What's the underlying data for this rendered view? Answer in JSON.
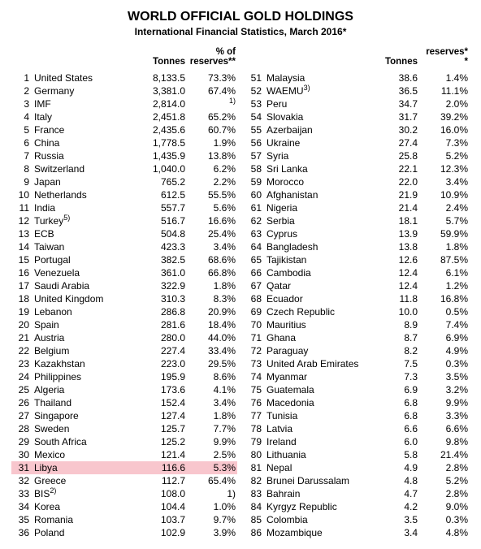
{
  "title": "WORLD OFFICIAL GOLD HOLDINGS",
  "subtitle": "International Financial Statistics, March 2016*",
  "headers": {
    "tonnes": "Tonnes",
    "reserves_left": "% of\nreserves**",
    "reserves_right": "reserves*\n*"
  },
  "highlight_rank": 31,
  "highlight_color": "#f8c6cd",
  "text_color": "#000000",
  "background_color": "#ffffff",
  "left": [
    {
      "rank": 1,
      "country": "United States",
      "tonnes": "8,133.5",
      "pct": "73.3%"
    },
    {
      "rank": 2,
      "country": "Germany",
      "tonnes": "3,381.0",
      "pct": "67.4%"
    },
    {
      "rank": 3,
      "country": "IMF",
      "tonnes": "2,814.0",
      "pct": "",
      "note_pct": "1)"
    },
    {
      "rank": 4,
      "country": "Italy",
      "tonnes": "2,451.8",
      "pct": "65.2%"
    },
    {
      "rank": 5,
      "country": "France",
      "tonnes": "2,435.6",
      "pct": "60.7%"
    },
    {
      "rank": 6,
      "country": "China",
      "tonnes": "1,778.5",
      "pct": "1.9%"
    },
    {
      "rank": 7,
      "country": "Russia",
      "tonnes": "1,435.9",
      "pct": "13.8%"
    },
    {
      "rank": 8,
      "country": "Switzerland",
      "tonnes": "1,040.0",
      "pct": "6.2%"
    },
    {
      "rank": 9,
      "country": "Japan",
      "tonnes": "765.2",
      "pct": "2.2%"
    },
    {
      "rank": 10,
      "country": "Netherlands",
      "tonnes": "612.5",
      "pct": "55.5%"
    },
    {
      "rank": 11,
      "country": "India",
      "tonnes": "557.7",
      "pct": "5.6%"
    },
    {
      "rank": 12,
      "country": "Turkey",
      "sup": "5)",
      "tonnes": "516.7",
      "pct": "16.6%"
    },
    {
      "rank": 13,
      "country": "ECB",
      "tonnes": "504.8",
      "pct": "25.4%"
    },
    {
      "rank": 14,
      "country": "Taiwan",
      "tonnes": "423.3",
      "pct": "3.4%"
    },
    {
      "rank": 15,
      "country": "Portugal",
      "tonnes": "382.5",
      "pct": "68.6%"
    },
    {
      "rank": 16,
      "country": "Venezuela",
      "tonnes": "361.0",
      "pct": "66.8%"
    },
    {
      "rank": 17,
      "country": "Saudi Arabia",
      "tonnes": "322.9",
      "pct": "1.8%"
    },
    {
      "rank": 18,
      "country": "United Kingdom",
      "tonnes": "310.3",
      "pct": "8.3%"
    },
    {
      "rank": 19,
      "country": "Lebanon",
      "tonnes": "286.8",
      "pct": "20.9%"
    },
    {
      "rank": 20,
      "country": "Spain",
      "tonnes": "281.6",
      "pct": "18.4%"
    },
    {
      "rank": 21,
      "country": "Austria",
      "tonnes": "280.0",
      "pct": "44.0%"
    },
    {
      "rank": 22,
      "country": "Belgium",
      "tonnes": "227.4",
      "pct": "33.4%"
    },
    {
      "rank": 23,
      "country": "Kazakhstan",
      "tonnes": "223.0",
      "pct": "29.5%"
    },
    {
      "rank": 24,
      "country": "Philippines",
      "tonnes": "195.9",
      "pct": "8.6%"
    },
    {
      "rank": 25,
      "country": "Algeria",
      "tonnes": "173.6",
      "pct": "4.1%"
    },
    {
      "rank": 26,
      "country": "Thailand",
      "tonnes": "152.4",
      "pct": "3.4%"
    },
    {
      "rank": 27,
      "country": "Singapore",
      "tonnes": "127.4",
      "pct": "1.8%"
    },
    {
      "rank": 28,
      "country": "Sweden",
      "tonnes": "125.7",
      "pct": "7.7%"
    },
    {
      "rank": 29,
      "country": "South Africa",
      "tonnes": "125.2",
      "pct": "9.9%"
    },
    {
      "rank": 30,
      "country": "Mexico",
      "tonnes": "121.4",
      "pct": "2.5%"
    },
    {
      "rank": 31,
      "country": "Libya",
      "tonnes": "116.6",
      "pct": "5.3%"
    },
    {
      "rank": 32,
      "country": "Greece",
      "tonnes": "112.7",
      "pct": "65.4%"
    },
    {
      "rank": 33,
      "country": "BIS",
      "sup": "2)",
      "tonnes": "108.0",
      "pct": "1)"
    },
    {
      "rank": 34,
      "country": "Korea",
      "tonnes": "104.4",
      "pct": "1.0%"
    },
    {
      "rank": 35,
      "country": "Romania",
      "tonnes": "103.7",
      "pct": "9.7%"
    },
    {
      "rank": 36,
      "country": "Poland",
      "tonnes": "102.9",
      "pct": "3.9%"
    }
  ],
  "right": [
    {
      "rank": 51,
      "country": "Malaysia",
      "tonnes": "38.6",
      "pct": "1.4%"
    },
    {
      "rank": 52,
      "country": "WAEMU",
      "sup": "3)",
      "tonnes": "36.5",
      "pct": "11.1%"
    },
    {
      "rank": 53,
      "country": "Peru",
      "tonnes": "34.7",
      "pct": "2.0%"
    },
    {
      "rank": 54,
      "country": "Slovakia",
      "tonnes": "31.7",
      "pct": "39.2%"
    },
    {
      "rank": 55,
      "country": "Azerbaijan",
      "tonnes": "30.2",
      "pct": "16.0%"
    },
    {
      "rank": 56,
      "country": "Ukraine",
      "tonnes": "27.4",
      "pct": "7.3%"
    },
    {
      "rank": 57,
      "country": "Syria",
      "tonnes": "25.8",
      "pct": "5.2%"
    },
    {
      "rank": 58,
      "country": "Sri Lanka",
      "tonnes": "22.1",
      "pct": "12.3%"
    },
    {
      "rank": 59,
      "country": "Morocco",
      "tonnes": "22.0",
      "pct": "3.4%"
    },
    {
      "rank": 60,
      "country": "Afghanistan",
      "tonnes": "21.9",
      "pct": "10.9%"
    },
    {
      "rank": 61,
      "country": "Nigeria",
      "tonnes": "21.4",
      "pct": "2.4%"
    },
    {
      "rank": 62,
      "country": "Serbia",
      "tonnes": "18.1",
      "pct": "5.7%"
    },
    {
      "rank": 63,
      "country": "Cyprus",
      "tonnes": "13.9",
      "pct": "59.9%"
    },
    {
      "rank": 64,
      "country": "Bangladesh",
      "tonnes": "13.8",
      "pct": "1.8%"
    },
    {
      "rank": 65,
      "country": "Tajikistan",
      "tonnes": "12.6",
      "pct": "87.5%"
    },
    {
      "rank": 66,
      "country": "Cambodia",
      "tonnes": "12.4",
      "pct": "6.1%"
    },
    {
      "rank": 67,
      "country": "Qatar",
      "tonnes": "12.4",
      "pct": "1.2%"
    },
    {
      "rank": 68,
      "country": "Ecuador",
      "tonnes": "11.8",
      "pct": "16.8%"
    },
    {
      "rank": 69,
      "country": "Czech Republic",
      "tonnes": "10.0",
      "pct": "0.5%"
    },
    {
      "rank": 70,
      "country": "Mauritius",
      "tonnes": "8.9",
      "pct": "7.4%"
    },
    {
      "rank": 71,
      "country": "Ghana",
      "tonnes": "8.7",
      "pct": "6.9%"
    },
    {
      "rank": 72,
      "country": "Paraguay",
      "tonnes": "8.2",
      "pct": "4.9%"
    },
    {
      "rank": 73,
      "country": "United Arab Emirates",
      "tonnes": "7.5",
      "pct": "0.3%"
    },
    {
      "rank": 74,
      "country": "Myanmar",
      "tonnes": "7.3",
      "pct": "3.5%"
    },
    {
      "rank": 75,
      "country": "Guatemala",
      "tonnes": "6.9",
      "pct": "3.2%"
    },
    {
      "rank": 76,
      "country": "Macedonia",
      "tonnes": "6.8",
      "pct": "9.9%"
    },
    {
      "rank": 77,
      "country": "Tunisia",
      "tonnes": "6.8",
      "pct": "3.3%"
    },
    {
      "rank": 78,
      "country": "Latvia",
      "tonnes": "6.6",
      "pct": "6.6%"
    },
    {
      "rank": 79,
      "country": "Ireland",
      "tonnes": "6.0",
      "pct": "9.8%"
    },
    {
      "rank": 80,
      "country": "Lithuania",
      "tonnes": "5.8",
      "pct": "21.4%"
    },
    {
      "rank": 81,
      "country": "Nepal",
      "tonnes": "4.9",
      "pct": "2.8%"
    },
    {
      "rank": 82,
      "country": "Brunei Darussalam",
      "tonnes": "4.8",
      "pct": "5.2%"
    },
    {
      "rank": 83,
      "country": "Bahrain",
      "tonnes": "4.7",
      "pct": "2.8%"
    },
    {
      "rank": 84,
      "country": "Kyrgyz Republic",
      "tonnes": "4.2",
      "pct": "9.0%"
    },
    {
      "rank": 85,
      "country": "Colombia",
      "tonnes": "3.5",
      "pct": "0.3%"
    },
    {
      "rank": 86,
      "country": "Mozambique",
      "tonnes": "3.4",
      "pct": "4.8%"
    }
  ]
}
